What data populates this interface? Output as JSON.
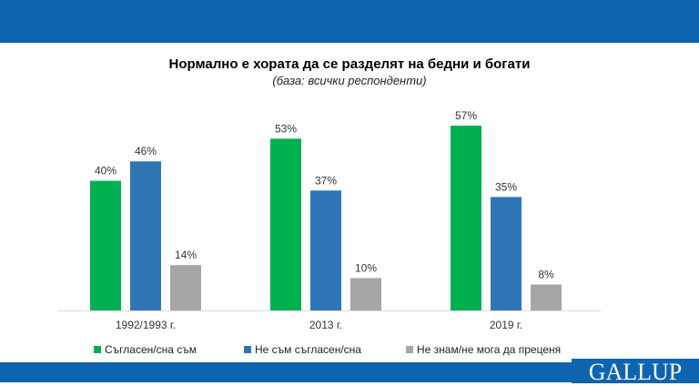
{
  "header": {
    "logo": "GALLUP"
  },
  "chart_data": {
    "type": "bar",
    "title": "Нормално е хората да се разделят на бедни и богати",
    "subtitle": "(база: всички респонденти)",
    "categories": [
      "1992/1993 г.",
      "2013 г.",
      "2019 г."
    ],
    "series": [
      {
        "name": "Съгласен/сна съм",
        "color": "#00b050",
        "values": [
          40,
          53,
          57
        ]
      },
      {
        "name": "Не съм съгласен/сна",
        "color": "#2e75b6",
        "values": [
          46,
          37,
          35
        ]
      },
      {
        "name": "Не знам/не мога да преценя",
        "color": "#a6a6a6",
        "values": [
          14,
          10,
          8
        ]
      }
    ],
    "value_suffix": "%",
    "ylim": [
      0,
      60
    ],
    "legend": "bottom"
  }
}
